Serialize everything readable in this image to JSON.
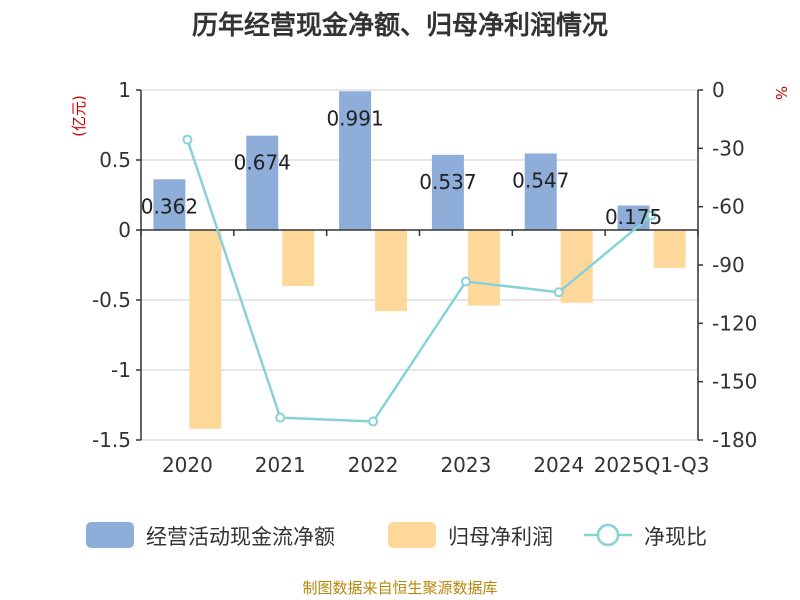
{
  "title": "历年经营现金净额、归母净利润情况",
  "source": "制图数据来自恒生聚源数据库",
  "colors": {
    "cash_flow": "#8eadd9",
    "net_profit": "#fed89b",
    "ratio_line": "#87d2d7",
    "unit_red": "#cc0000",
    "source_text": "#b8860b",
    "axis": "#333333",
    "grid": "#cccccc"
  },
  "chart_data": {
    "type": "bar",
    "categories": [
      "2020",
      "2021",
      "2022",
      "2023",
      "2024",
      "2025Q1-Q3"
    ],
    "left_axis": {
      "unit": "(亿元)",
      "min": -1.5,
      "max": 1,
      "ticks": [
        1,
        0.5,
        0,
        -0.5,
        -1,
        -1.5
      ],
      "tick_labels": [
        "1",
        "0.5",
        "0",
        "-0.5",
        "-1",
        "-1.5"
      ]
    },
    "right_axis": {
      "unit": "%",
      "min": -180,
      "max": 0,
      "ticks": [
        0,
        -30,
        -60,
        -90,
        -120,
        -150,
        -180
      ],
      "tick_labels": [
        "0",
        "-30",
        "-60",
        "-90",
        "-120",
        "-150",
        "-180"
      ]
    },
    "grid": true,
    "legend_position": "bottom",
    "series": [
      {
        "name": "经营活动现金流净额",
        "kind": "bar",
        "axis": "left",
        "values": [
          0.362,
          0.674,
          0.991,
          0.537,
          0.547,
          0.175
        ],
        "labels": [
          "0.362",
          "0.674",
          "0.991",
          "0.537",
          "0.547",
          "0.175"
        ]
      },
      {
        "name": "归母净利润",
        "kind": "bar",
        "axis": "left",
        "values": [
          -1.42,
          -0.4,
          -0.58,
          -0.54,
          -0.52,
          -0.27
        ]
      },
      {
        "name": "净现比",
        "kind": "line",
        "axis": "right",
        "values": [
          -25.5,
          -168.5,
          -170.5,
          -98.5,
          -104,
          -64.5
        ]
      }
    ]
  }
}
